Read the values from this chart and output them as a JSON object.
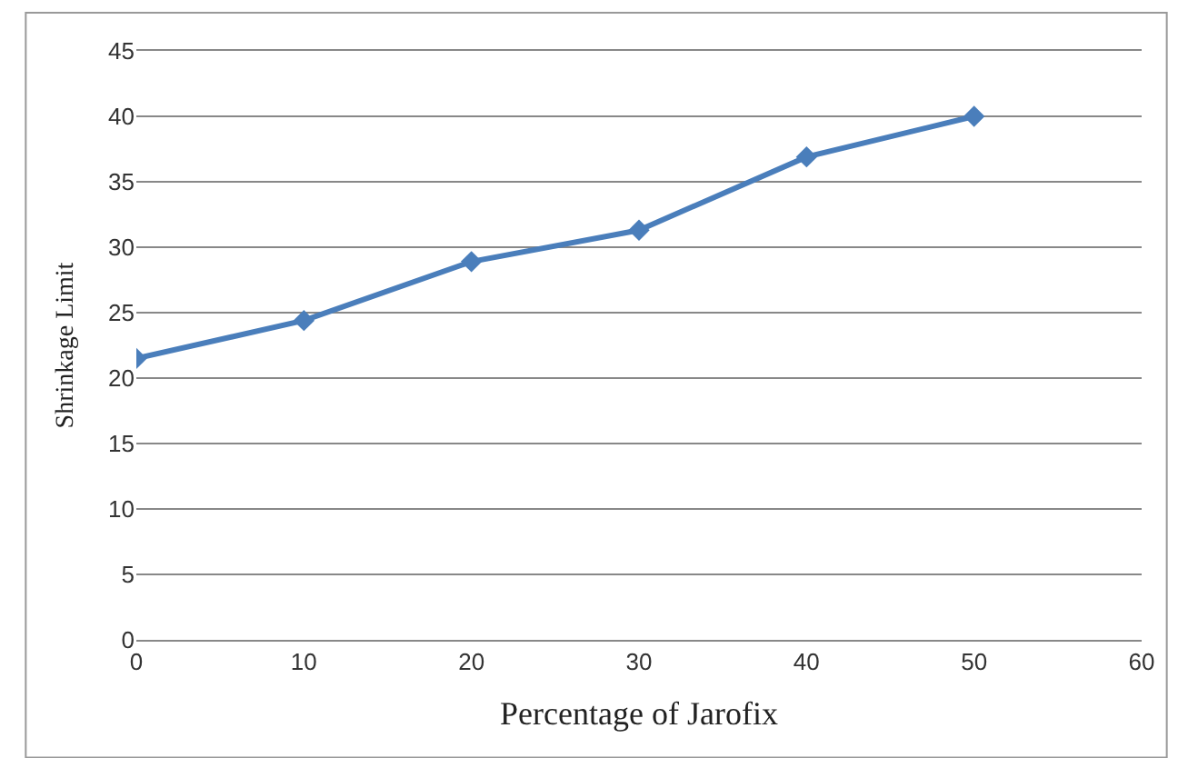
{
  "chart_data": {
    "type": "line",
    "xlabel": "Percentage of Jarofix",
    "ylabel": "Shrinkage Limit",
    "x": [
      0,
      10,
      20,
      30,
      40,
      50
    ],
    "series": [
      {
        "color": "#4a7ebb",
        "values": [
          21.5,
          24.4,
          28.9,
          31.3,
          36.9,
          40
        ]
      }
    ],
    "xlim": [
      0,
      60
    ],
    "xticks": [
      0,
      10,
      20,
      30,
      40,
      50,
      60
    ],
    "ylim": [
      0,
      45
    ],
    "yticks": [
      0,
      5,
      10,
      15,
      20,
      25,
      30,
      35,
      40,
      45
    ],
    "grid": "y",
    "marker": "diamond",
    "line_style": "solid"
  }
}
